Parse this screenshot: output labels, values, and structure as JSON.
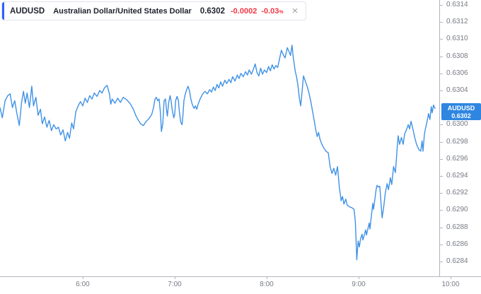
{
  "header": {
    "symbol": "AUDUSD",
    "description": "Australian Dollar/United States Dollar",
    "price": "0.6302",
    "change_abs": "-0.0002",
    "change_pct": "-0.03",
    "change_pct_suffix": "%",
    "close_glyph": "×"
  },
  "price_badge": {
    "symbol": "AUDUSD",
    "price": "0.6302"
  },
  "colors": {
    "line": "#3f92e6",
    "badge": "#2e86e0",
    "accent_bar": "#2962ff",
    "negative": "#f23645",
    "axis_text": "#787b86",
    "axis_line": "#b2b5be",
    "text_dark": "#1e222d"
  },
  "chart_data": {
    "type": "line",
    "symbol": "AUDUSD",
    "grid": false,
    "legend_position": "top-left",
    "x_axis": {
      "labels": [
        "6:00",
        "7:00",
        "8:00",
        "9:00",
        "10:00"
      ],
      "unit": "time",
      "range_hours": [
        5.1,
        9.93
      ]
    },
    "y_axis": {
      "side": "right",
      "tick_step": 0.0002,
      "visible_range": [
        0.6283,
        0.6315
      ],
      "labels": [
        "0.6314",
        "0.6312",
        "0.6310",
        "0.6308",
        "0.6306",
        "0.6304",
        "0.6300",
        "0.6298",
        "0.6296",
        "0.6294",
        "0.6292",
        "0.6290",
        "0.6288",
        "0.6286",
        "0.6284"
      ]
    },
    "last_price": 0.6302,
    "series": [
      {
        "name": "AUDUSD",
        "color": "#3f92e6",
        "points": [
          [
            5.1,
            0.6302
          ],
          [
            5.125,
            0.63008
          ],
          [
            5.155,
            0.63028
          ],
          [
            5.185,
            0.63034
          ],
          [
            5.21,
            0.63036
          ],
          [
            5.235,
            0.6302
          ],
          [
            5.26,
            0.63028
          ],
          [
            5.285,
            0.63012
          ],
          [
            5.31,
            0.62999
          ],
          [
            5.335,
            0.63026
          ],
          [
            5.355,
            0.63039
          ],
          [
            5.375,
            0.63025
          ],
          [
            5.395,
            0.63037
          ],
          [
            5.42,
            0.6302
          ],
          [
            5.445,
            0.63045
          ],
          [
            5.465,
            0.63022
          ],
          [
            5.49,
            0.63032
          ],
          [
            5.515,
            0.63011
          ],
          [
            5.54,
            0.63018
          ],
          [
            5.56,
            0.63001
          ],
          [
            5.585,
            0.63009
          ],
          [
            5.61,
            0.62997
          ],
          [
            5.635,
            0.63005
          ],
          [
            5.66,
            0.62993
          ],
          [
            5.685,
            0.63
          ],
          [
            5.71,
            0.62995
          ],
          [
            5.735,
            0.62997
          ],
          [
            5.76,
            0.62988
          ],
          [
            5.785,
            0.62994
          ],
          [
            5.81,
            0.62981
          ],
          [
            5.835,
            0.62991
          ],
          [
            5.855,
            0.62984
          ],
          [
            5.88,
            0.63002
          ],
          [
            5.9,
            0.62995
          ],
          [
            5.925,
            0.63015
          ],
          [
            5.95,
            0.63022
          ],
          [
            5.975,
            0.63027
          ],
          [
            6.0,
            0.63022
          ],
          [
            6.025,
            0.63031
          ],
          [
            6.05,
            0.63026
          ],
          [
            6.075,
            0.63034
          ],
          [
            6.1,
            0.6303
          ],
          [
            6.125,
            0.63037
          ],
          [
            6.155,
            0.63033
          ],
          [
            6.185,
            0.6304
          ],
          [
            6.21,
            0.63037
          ],
          [
            6.235,
            0.63043
          ],
          [
            6.265,
            0.63046
          ],
          [
            6.29,
            0.63036
          ],
          [
            6.305,
            0.63024
          ],
          [
            6.32,
            0.6303
          ],
          [
            6.35,
            0.63025
          ],
          [
            6.38,
            0.63031
          ],
          [
            6.41,
            0.63026
          ],
          [
            6.44,
            0.63032
          ],
          [
            6.48,
            0.63029
          ],
          [
            6.52,
            0.63024
          ],
          [
            6.55,
            0.63018
          ],
          [
            6.58,
            0.6301
          ],
          [
            6.6,
            0.63006
          ],
          [
            6.63,
            0.63001
          ],
          [
            6.66,
            0.62999
          ],
          [
            6.69,
            0.63004
          ],
          [
            6.72,
            0.63007
          ],
          [
            6.75,
            0.63012
          ],
          [
            6.77,
            0.6302
          ],
          [
            6.785,
            0.6303
          ],
          [
            6.8,
            0.63032
          ],
          [
            6.815,
            0.63028
          ],
          [
            6.83,
            0.6303
          ],
          [
            6.845,
            0.63014
          ],
          [
            6.855,
            0.62992
          ],
          [
            6.87,
            0.63001
          ],
          [
            6.885,
            0.63028
          ],
          [
            6.9,
            0.6303
          ],
          [
            6.91,
            0.63018
          ],
          [
            6.92,
            0.6301
          ],
          [
            6.935,
            0.63026
          ],
          [
            6.95,
            0.63034
          ],
          [
            6.96,
            0.63028
          ],
          [
            6.975,
            0.63016
          ],
          [
            6.99,
            0.63008
          ],
          [
            7.0,
            0.63012
          ],
          [
            7.01,
            0.63028
          ],
          [
            7.025,
            0.63033
          ],
          [
            7.04,
            0.63028
          ],
          [
            7.05,
            0.63016
          ],
          [
            7.065,
            0.63003
          ],
          [
            7.08,
            0.63
          ],
          [
            7.09,
            0.63012
          ],
          [
            7.1,
            0.63028
          ],
          [
            7.115,
            0.63036
          ],
          [
            7.13,
            0.63041
          ],
          [
            7.145,
            0.63045
          ],
          [
            7.16,
            0.6304
          ],
          [
            7.175,
            0.6303
          ],
          [
            7.19,
            0.63024
          ],
          [
            7.21,
            0.63019
          ],
          [
            7.225,
            0.63022
          ],
          [
            7.24,
            0.63018
          ],
          [
            7.255,
            0.63024
          ],
          [
            7.28,
            0.63031
          ],
          [
            7.305,
            0.63036
          ],
          [
            7.33,
            0.63039
          ],
          [
            7.355,
            0.63036
          ],
          [
            7.38,
            0.63041
          ],
          [
            7.4,
            0.63038
          ],
          [
            7.42,
            0.63044
          ],
          [
            7.44,
            0.6304
          ],
          [
            7.46,
            0.63047
          ],
          [
            7.48,
            0.63043
          ],
          [
            7.5,
            0.6305
          ],
          [
            7.52,
            0.63045
          ],
          [
            7.545,
            0.63052
          ],
          [
            7.565,
            0.63048
          ],
          [
            7.59,
            0.63053
          ],
          [
            7.61,
            0.63049
          ],
          [
            7.63,
            0.63056
          ],
          [
            7.655,
            0.63051
          ],
          [
            7.68,
            0.63058
          ],
          [
            7.7,
            0.63054
          ],
          [
            7.72,
            0.6306
          ],
          [
            7.745,
            0.63056
          ],
          [
            7.77,
            0.63062
          ],
          [
            7.79,
            0.63058
          ],
          [
            7.81,
            0.63064
          ],
          [
            7.835,
            0.63059
          ],
          [
            7.86,
            0.63066
          ],
          [
            7.875,
            0.63071
          ],
          [
            7.895,
            0.63061
          ],
          [
            7.915,
            0.63057
          ],
          [
            7.935,
            0.63066
          ],
          [
            7.955,
            0.63059
          ],
          [
            7.975,
            0.63064
          ],
          [
            8.0,
            0.63061
          ],
          [
            8.02,
            0.63068
          ],
          [
            8.04,
            0.63063
          ],
          [
            8.06,
            0.6307
          ],
          [
            8.08,
            0.63065
          ],
          [
            8.1,
            0.63069
          ],
          [
            8.12,
            0.63067
          ],
          [
            8.14,
            0.63077
          ],
          [
            8.16,
            0.63087
          ],
          [
            8.18,
            0.63082
          ],
          [
            8.2,
            0.63078
          ],
          [
            8.225,
            0.6309
          ],
          [
            8.245,
            0.63085
          ],
          [
            8.26,
            0.63081
          ],
          [
            8.275,
            0.63093
          ],
          [
            8.29,
            0.63078
          ],
          [
            8.31,
            0.63063
          ],
          [
            8.325,
            0.63056
          ],
          [
            8.34,
            0.63046
          ],
          [
            8.355,
            0.63031
          ],
          [
            8.37,
            0.63022
          ],
          [
            8.385,
            0.63038
          ],
          [
            8.4,
            0.63057
          ],
          [
            8.42,
            0.63051
          ],
          [
            8.44,
            0.63045
          ],
          [
            8.46,
            0.63037
          ],
          [
            8.48,
            0.63027
          ],
          [
            8.5,
            0.63015
          ],
          [
            8.52,
            0.63003
          ],
          [
            8.535,
            0.62993
          ],
          [
            8.55,
            0.62986
          ],
          [
            8.565,
            0.62991
          ],
          [
            8.58,
            0.62983
          ],
          [
            8.6,
            0.62977
          ],
          [
            8.62,
            0.62973
          ],
          [
            8.645,
            0.62969
          ],
          [
            8.67,
            0.62967
          ],
          [
            8.69,
            0.62951
          ],
          [
            8.71,
            0.62943
          ],
          [
            8.73,
            0.62949
          ],
          [
            8.75,
            0.62941
          ],
          [
            8.77,
            0.62951
          ],
          [
            8.79,
            0.62927
          ],
          [
            8.81,
            0.62911
          ],
          [
            8.825,
            0.62916
          ],
          [
            8.84,
            0.62907
          ],
          [
            8.86,
            0.62913
          ],
          [
            8.875,
            0.62906
          ],
          [
            8.9,
            0.62904
          ],
          [
            8.925,
            0.62903
          ],
          [
            8.95,
            0.62901
          ],
          [
            8.965,
            0.62886
          ],
          [
            8.98,
            0.62842
          ],
          [
            8.995,
            0.62864
          ],
          [
            9.008,
            0.62857
          ],
          [
            9.02,
            0.62866
          ],
          [
            9.038,
            0.62872
          ],
          [
            9.046,
            0.62865
          ],
          [
            9.077,
            0.62877
          ],
          [
            9.085,
            0.62871
          ],
          [
            9.115,
            0.62885
          ],
          [
            9.123,
            0.62878
          ],
          [
            9.154,
            0.62908
          ],
          [
            9.162,
            0.62901
          ],
          [
            9.19,
            0.62924
          ],
          [
            9.2,
            0.62929
          ],
          [
            9.215,
            0.62927
          ],
          [
            9.23,
            0.62928
          ],
          [
            9.255,
            0.62891
          ],
          [
            9.275,
            0.62906
          ],
          [
            9.29,
            0.6292
          ],
          [
            9.31,
            0.62931
          ],
          [
            9.325,
            0.62924
          ],
          [
            9.345,
            0.62938
          ],
          [
            9.36,
            0.6293
          ],
          [
            9.38,
            0.62951
          ],
          [
            9.4,
            0.62944
          ],
          [
            9.42,
            0.62974
          ],
          [
            9.43,
            0.62987
          ],
          [
            9.445,
            0.62977
          ],
          [
            9.465,
            0.62985
          ],
          [
            9.485,
            0.62977
          ],
          [
            9.5,
            0.62989
          ],
          [
            9.52,
            0.62994
          ],
          [
            9.54,
            0.63
          ],
          [
            9.555,
            0.62995
          ],
          [
            9.57,
            0.63004
          ],
          [
            9.59,
            0.62995
          ],
          [
            9.61,
            0.62985
          ],
          [
            9.63,
            0.62977
          ],
          [
            9.655,
            0.62971
          ],
          [
            9.675,
            0.62969
          ],
          [
            9.69,
            0.62981
          ],
          [
            9.7,
            0.62969
          ],
          [
            9.715,
            0.62989
          ],
          [
            9.73,
            0.62997
          ],
          [
            9.745,
            0.63004
          ],
          [
            9.76,
            0.63013
          ],
          [
            9.775,
            0.63006
          ],
          [
            9.79,
            0.63021
          ],
          [
            9.8,
            0.63014
          ],
          [
            9.815,
            0.63023
          ],
          [
            9.83,
            0.63019
          ]
        ]
      }
    ]
  }
}
